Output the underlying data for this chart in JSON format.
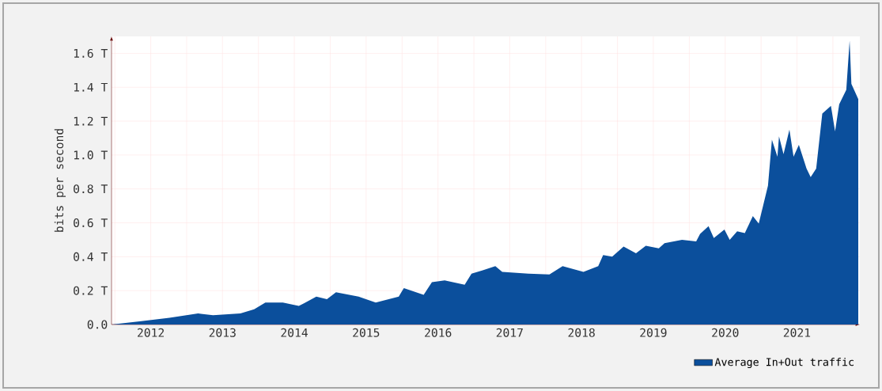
{
  "chart_data": {
    "type": "area",
    "ylabel": "bits per second",
    "x": [
      "2011-12-15",
      "2012-05-15",
      "2012-10-05",
      "2013-02-28",
      "2013-05-15",
      "2013-10-01",
      "2013-12-10",
      "2014-02-05",
      "2014-05-05",
      "2014-07-25",
      "2014-08-20",
      "2014-10-22",
      "2014-12-15",
      "2015-01-30",
      "2015-05-25",
      "2015-08-20",
      "2015-12-15",
      "2016-01-10",
      "2016-04-20",
      "2016-06-01",
      "2016-08-05",
      "2016-11-15",
      "2016-12-20",
      "2017-02-15",
      "2017-04-20",
      "2017-05-25",
      "2017-10-05",
      "2018-01-20",
      "2018-03-28",
      "2018-07-12",
      "2018-09-25",
      "2018-10-20",
      "2018-12-05",
      "2019-02-01",
      "2019-04-05",
      "2019-05-25",
      "2019-07-30",
      "2019-08-28",
      "2019-11-25",
      "2020-02-05",
      "2020-02-25",
      "2020-04-08",
      "2020-05-05",
      "2020-06-28",
      "2020-07-25",
      "2020-09-01",
      "2020-10-10",
      "2020-11-20",
      "2020-12-20",
      "2021-02-05",
      "2021-02-25",
      "2021-03-25",
      "2021-04-02",
      "2021-04-25",
      "2021-05-25",
      "2021-06-15",
      "2021-07-12",
      "2021-08-20",
      "2021-09-10",
      "2021-10-08",
      "2021-11-08",
      "2021-12-22",
      "2022-01-12",
      "2022-02-02",
      "2022-03-10",
      "2022-03-27",
      "2022-04-05",
      "2022-05-10"
    ],
    "series": [
      {
        "name": "Average In+Out traffic",
        "color": "#0b4f9c",
        "values": [
          0,
          0.02,
          0.04,
          0.065,
          0.055,
          0.065,
          0.09,
          0.13,
          0.13,
          0.11,
          0.125,
          0.165,
          0.15,
          0.19,
          0.165,
          0.13,
          0.165,
          0.215,
          0.175,
          0.25,
          0.26,
          0.235,
          0.3,
          0.32,
          0.345,
          0.31,
          0.3,
          0.295,
          0.345,
          0.31,
          0.345,
          0.41,
          0.4,
          0.46,
          0.42,
          0.465,
          0.45,
          0.48,
          0.5,
          0.49,
          0.535,
          0.58,
          0.51,
          0.56,
          0.5,
          0.55,
          0.54,
          0.64,
          0.595,
          0.82,
          1.09,
          0.99,
          1.11,
          1.005,
          1.15,
          0.99,
          1.06,
          0.92,
          0.87,
          0.92,
          1.245,
          1.29,
          1.14,
          1.3,
          1.385,
          1.675,
          1.42,
          1.33
        ]
      }
    ],
    "xlim": [
      "2011-12-15",
      "2022-05-18"
    ],
    "xticks": [
      {
        "value": "2012-01-01",
        "label": null
      },
      {
        "value": "2012-07-02",
        "label": "2012"
      },
      {
        "value": "2013-01-01",
        "label": null
      },
      {
        "value": "2013-07-02",
        "label": "2013"
      },
      {
        "value": "2014-01-01",
        "label": null
      },
      {
        "value": "2014-07-02",
        "label": "2014"
      },
      {
        "value": "2015-01-01",
        "label": null
      },
      {
        "value": "2015-07-02",
        "label": "2015"
      },
      {
        "value": "2016-01-01",
        "label": null
      },
      {
        "value": "2016-07-02",
        "label": "2016"
      },
      {
        "value": "2017-01-01",
        "label": null
      },
      {
        "value": "2017-07-02",
        "label": "2017"
      },
      {
        "value": "2018-01-01",
        "label": null
      },
      {
        "value": "2018-07-02",
        "label": "2018"
      },
      {
        "value": "2019-01-01",
        "label": null
      },
      {
        "value": "2019-07-02",
        "label": "2019"
      },
      {
        "value": "2020-01-01",
        "label": null
      },
      {
        "value": "2020-07-02",
        "label": "2020"
      },
      {
        "value": "2021-01-01",
        "label": null
      },
      {
        "value": "2021-07-02",
        "label": "2021"
      },
      {
        "value": "2022-01-01",
        "label": null
      }
    ],
    "ylim": [
      0,
      1.7
    ],
    "yticks": [
      {
        "value": 0,
        "label": "0.0"
      },
      {
        "value": 0.2,
        "label": "0.2 T"
      },
      {
        "value": 0.4,
        "label": "0.4 T"
      },
      {
        "value": 0.6,
        "label": "0.6 T"
      },
      {
        "value": 0.8,
        "label": "0.8 T"
      },
      {
        "value": 1.0,
        "label": "1.0 T"
      },
      {
        "value": 1.2,
        "label": "1.2 T"
      },
      {
        "value": 1.4,
        "label": "1.4 T"
      },
      {
        "value": 1.6,
        "label": "1.6 T"
      }
    ],
    "grid": true,
    "legend": "bottom right"
  }
}
